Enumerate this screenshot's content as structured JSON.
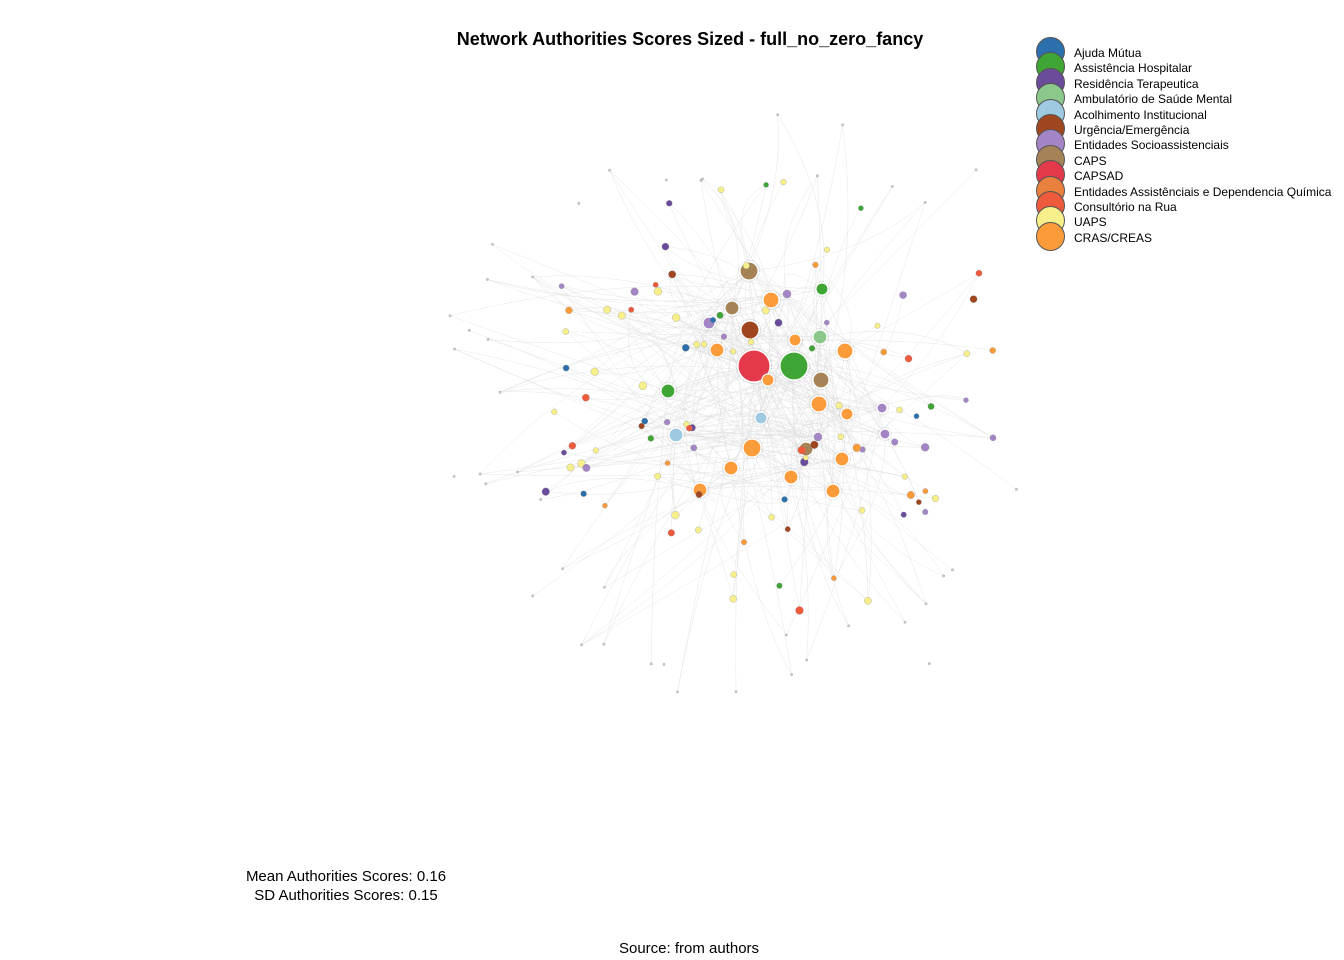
{
  "title": "Network Authorities Scores  Sized - full_no_zero_fancy",
  "legend": [
    {
      "label": "Ajuda Mútua",
      "color": "#2b6fad"
    },
    {
      "label": "Assistência Hospitalar",
      "color": "#3fa535"
    },
    {
      "label": "Residência Terapeutica",
      "color": "#6b4c9a"
    },
    {
      "label": "Ambulatório de Saúde Mental",
      "color": "#8cc88c"
    },
    {
      "label": "Acolhimento Institucional",
      "color": "#9ecae1"
    },
    {
      "label": "Urgência/Emergência",
      "color": "#a0461e"
    },
    {
      "label": "Entidades Socioassistenciais",
      "color": "#a385c6"
    },
    {
      "label": "CAPS",
      "color": "#a68356"
    },
    {
      "label": "CAPSAD",
      "color": "#e3394a"
    },
    {
      "label": "Entidades Assistênciais e Dependencia Química",
      "color": "#e9803e"
    },
    {
      "label": "Consultório na Rua",
      "color": "#ee5a3c"
    },
    {
      "label": "UAPS",
      "color": "#f7f08a"
    },
    {
      "label": "CRAS/CREAS",
      "color": "#fb9b3a"
    }
  ],
  "stats": {
    "mean": "Mean Authorities Scores: 0.16",
    "sd": "SD Authorities Scores: 0.15"
  },
  "source": "Source: from authors",
  "edge_color": "#dddddd"
}
